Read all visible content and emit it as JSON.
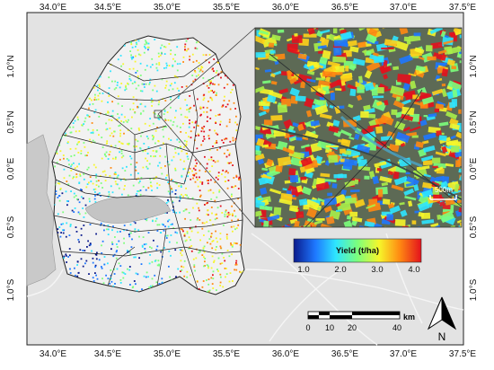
{
  "map": {
    "top_axis": [
      "34.0°E",
      "34.5°E",
      "35.0°E",
      "35.5°E",
      "36.0°E",
      "36.5°E",
      "37.0°E",
      "37.5°E"
    ],
    "bottom_axis": [
      "34.0°E",
      "34.5°E",
      "35.0°E",
      "35.5°E",
      "36.0°E",
      "36.5°E",
      "37.0°E",
      "37.5°E"
    ],
    "left_axis": [
      "1.0°N",
      "0.5°N",
      "0.0°E",
      "0.5°S",
      "1.0°S"
    ],
    "right_axis": [
      "1.0°N",
      "0.5°N",
      "0.0°E",
      "0.5°S",
      "1.0°S"
    ],
    "legend": {
      "title": "Yield (t/ha)",
      "ticks": [
        "1.0",
        "2.0",
        "3.0",
        "4.0"
      ],
      "colors": [
        "#0a1a8c",
        "#1e78ff",
        "#2ee6ff",
        "#7cff7c",
        "#f6f62a",
        "#ff8a12",
        "#e3111d"
      ]
    },
    "inset": {
      "scale_label": "500m"
    },
    "scalebar": {
      "unit": "km",
      "labels": [
        "0",
        "10",
        "20",
        "40"
      ]
    },
    "north_arrow": {
      "label": "N"
    }
  }
}
